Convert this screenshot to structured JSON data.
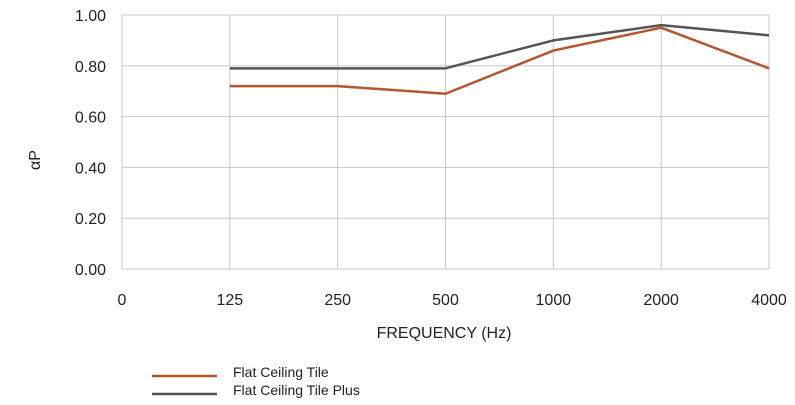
{
  "chart_data": {
    "type": "line",
    "title": "",
    "xlabel": "FREQUENCY (Hz)",
    "ylabel": "αP",
    "categories": [
      "0",
      "125",
      "250",
      "500",
      "1000",
      "2000",
      "4000"
    ],
    "y_ticks": [
      "0.00",
      "0.20",
      "0.40",
      "0.60",
      "0.80",
      "1.00"
    ],
    "ylim": [
      0,
      1
    ],
    "grid": true,
    "legend_position": "bottom-left",
    "series": [
      {
        "name": "Flat Ceiling Tile",
        "color": "#b5562f",
        "values": [
          null,
          0.72,
          0.72,
          0.69,
          0.86,
          0.95,
          0.79
        ]
      },
      {
        "name": "Flat Ceiling Tile Plus",
        "color": "#555555",
        "values": [
          null,
          0.79,
          0.79,
          0.79,
          0.9,
          0.96,
          0.92
        ]
      }
    ]
  },
  "colors": {
    "grid": "#c8c8c8",
    "frame": "#c8c8c8"
  }
}
